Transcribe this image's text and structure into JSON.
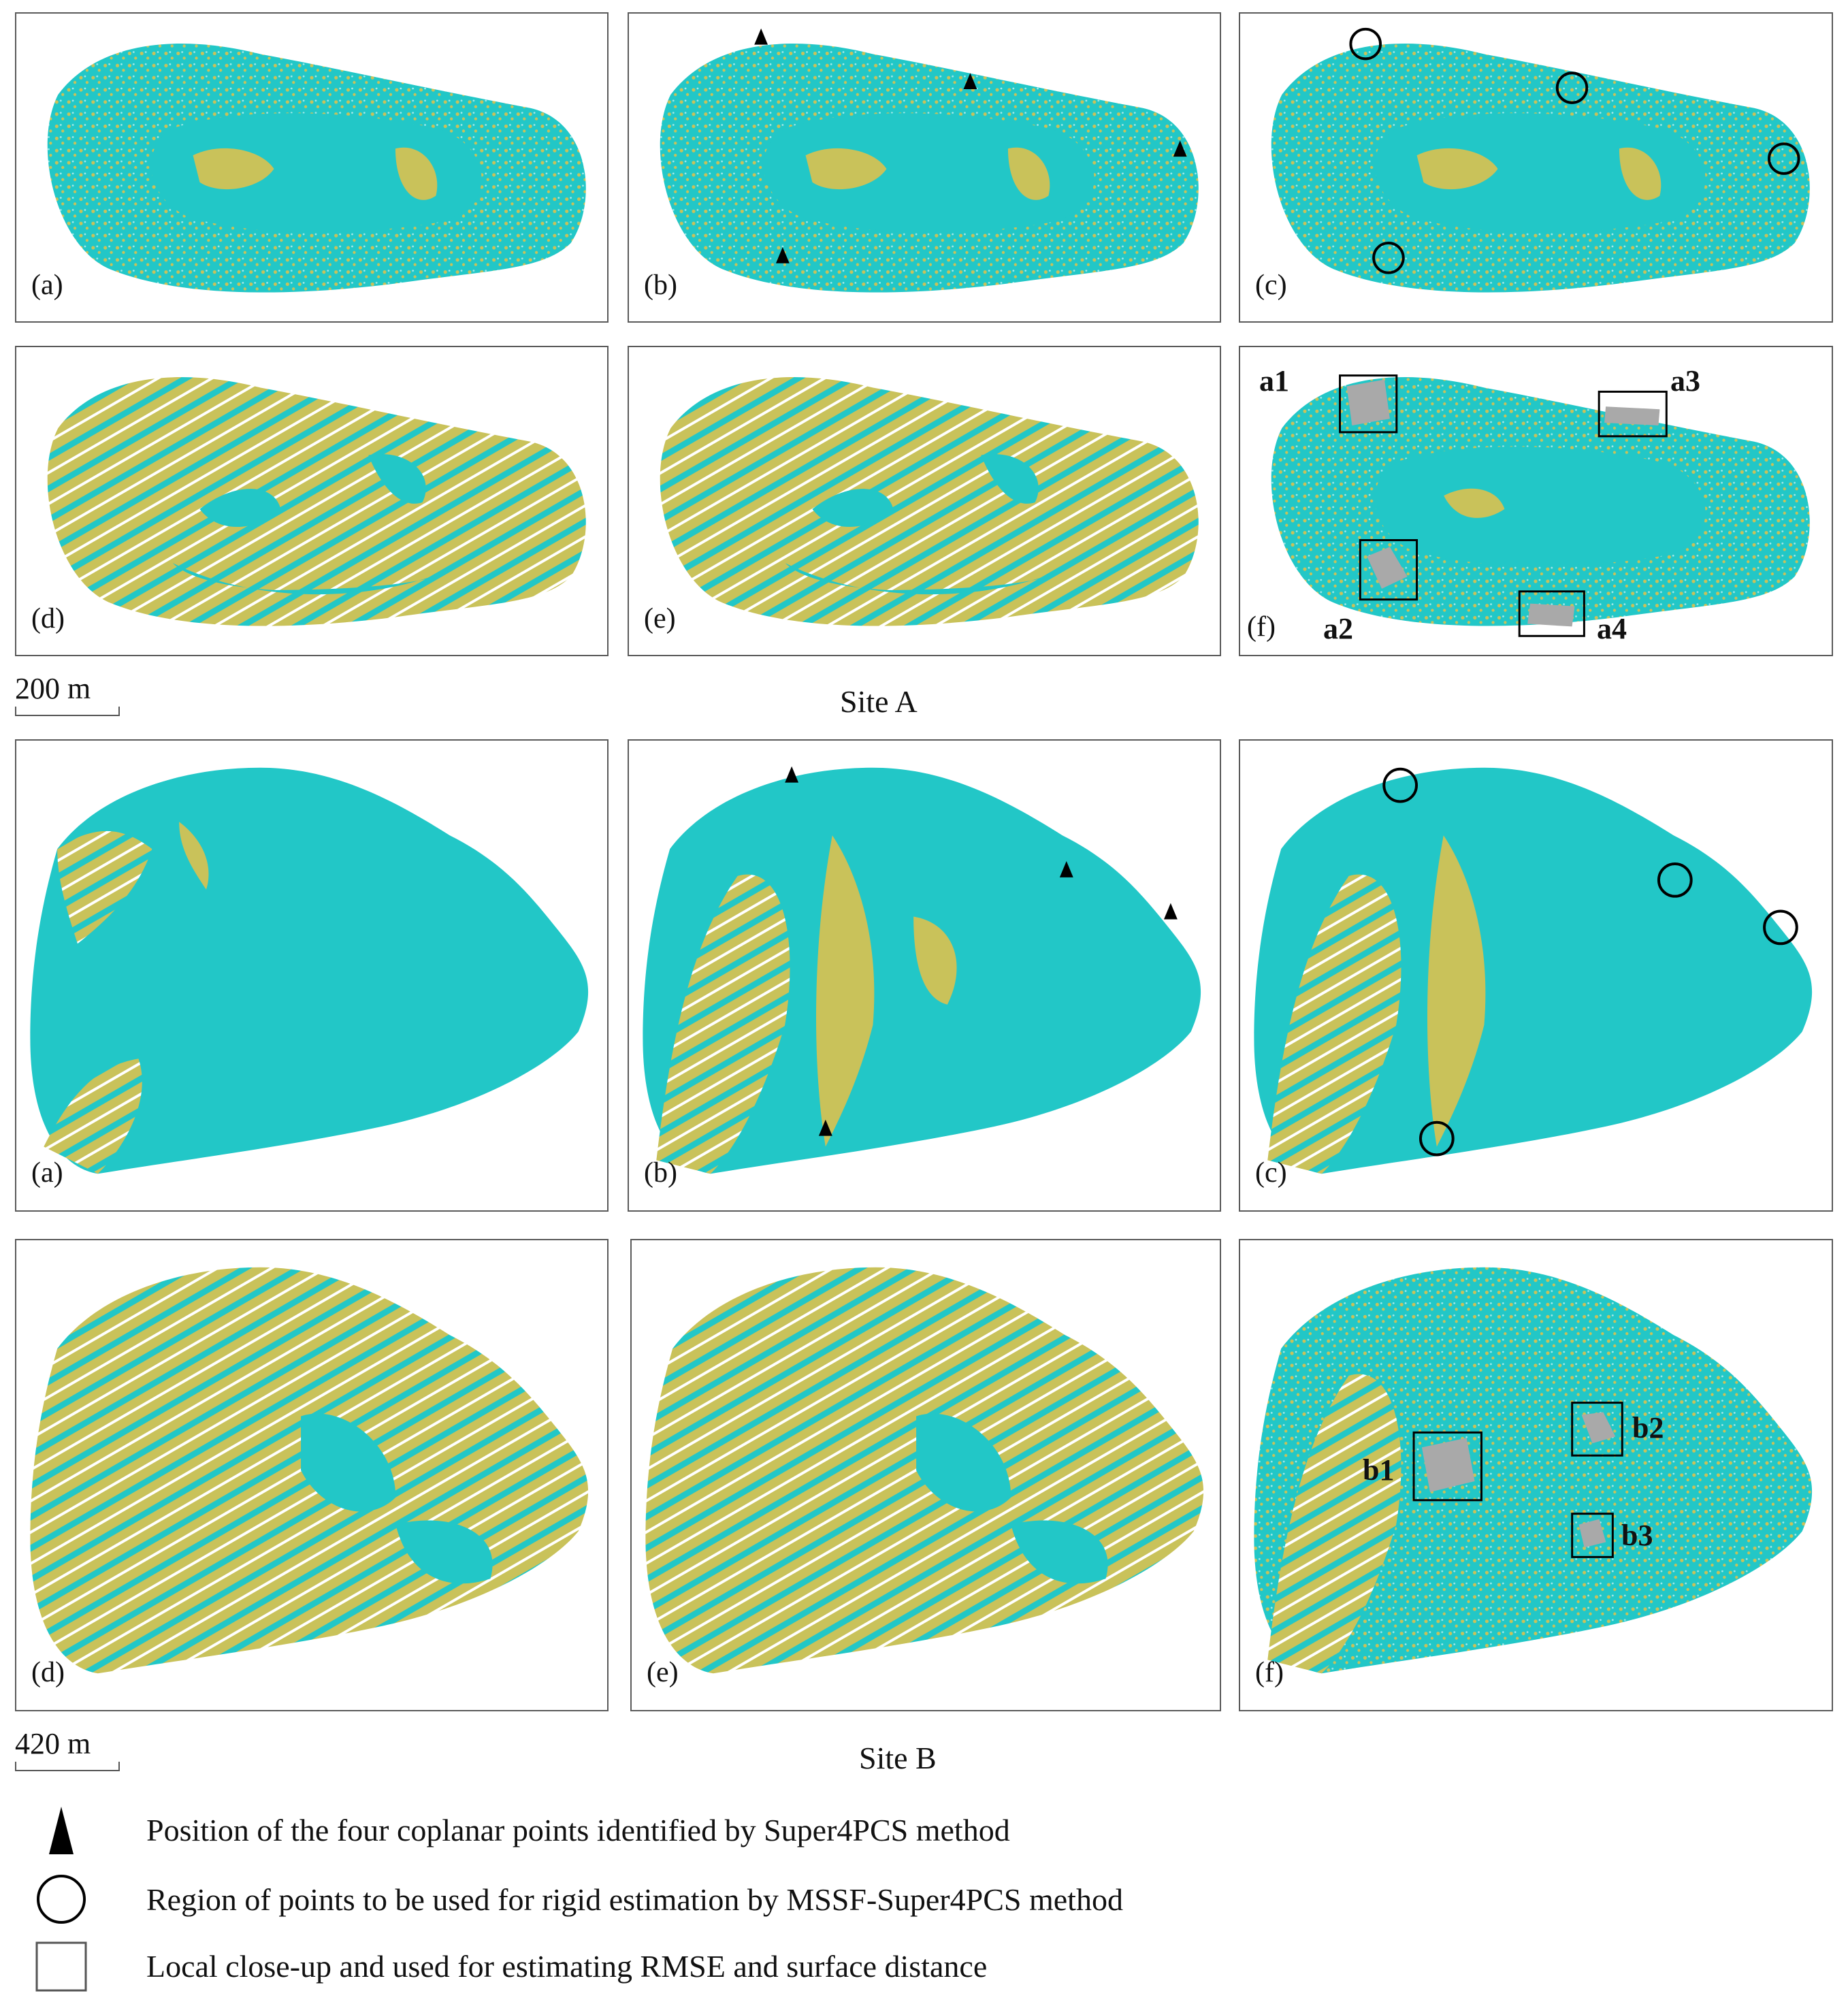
{
  "colors": {
    "teal": "#22c7c7",
    "olive": "#c9c25a",
    "gray": "#a9a9a9",
    "frame": "#5a5a5a"
  },
  "panel_labels": {
    "a": "(a)",
    "b": "(b)",
    "c": "(c)",
    "d": "(d)",
    "e": "(e)",
    "f": "(f)"
  },
  "site_a": {
    "title": "Site A",
    "scale": "200 m",
    "regions": [
      "a1",
      "a2",
      "a3",
      "a4"
    ]
  },
  "site_b": {
    "title": "Site B",
    "scale": "420 m",
    "regions": [
      "b1",
      "b2",
      "b3"
    ]
  },
  "legend": {
    "triangle": "Position of the four coplanar points identified by Super4PCS method",
    "circle": "Region of points to be used for rigid estimation by MSSF-Super4PCS method",
    "square": "Local close-up and used for estimating RMSE and surface distance"
  }
}
